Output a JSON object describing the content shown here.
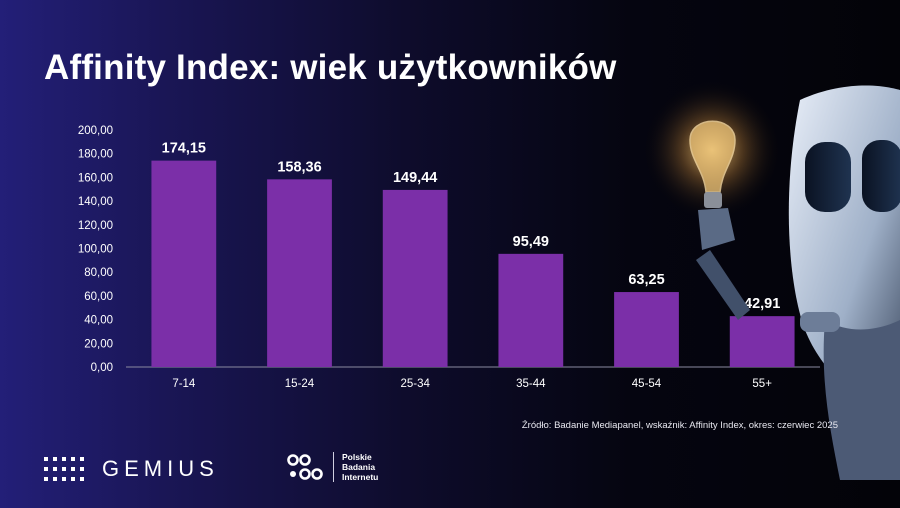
{
  "title": "Affinity Index: wiek użytkowników",
  "source": "Źródło: Badanie Mediapanel, wskaźnik: Affinity Index, okres: czerwiec 2025",
  "logos": {
    "gemius": "GEMIUS",
    "pbi_lines": [
      "Polskie",
      "Badania",
      "Internetu"
    ]
  },
  "colors": {
    "bar": "#7b2fa8",
    "text": "#ffffff",
    "axis": "#8a8aa0"
  },
  "chart_data": {
    "type": "bar",
    "title": "Affinity Index: wiek użytkowników",
    "categories": [
      "7-14",
      "15-24",
      "25-34",
      "35-44",
      "45-54",
      "55+"
    ],
    "values": [
      174.15,
      158.36,
      149.44,
      95.49,
      63.25,
      42.91
    ],
    "value_labels": [
      "174,15",
      "158,36",
      "149,44",
      "95,49",
      "63,25",
      "42,91"
    ],
    "yticks": [
      "0,00",
      "20,00",
      "40,00",
      "60,00",
      "80,00",
      "100,00",
      "120,00",
      "140,00",
      "160,00",
      "180,00",
      "200,00"
    ],
    "ylim": [
      0,
      200
    ],
    "xlabel": "",
    "ylabel": "",
    "grid": false,
    "legend": "none"
  }
}
